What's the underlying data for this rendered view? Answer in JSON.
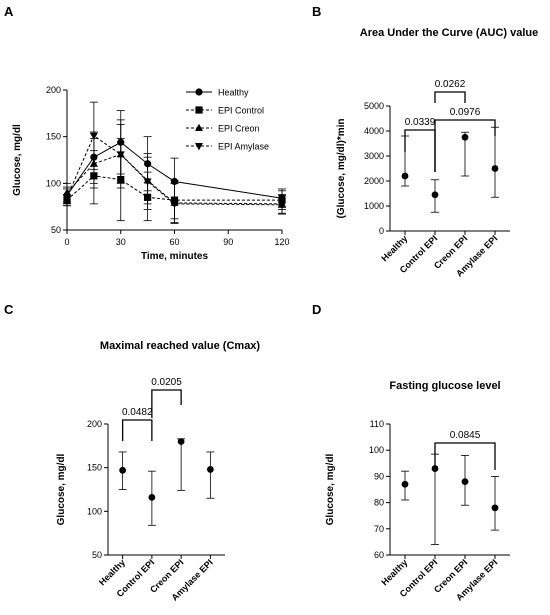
{
  "chart_data": [
    {
      "panel": "A",
      "type": "line",
      "title": "",
      "xlabel": "Time, minutes",
      "ylabel": "Glucose, mg/dl",
      "xlim": [
        0,
        120
      ],
      "ylim": [
        50,
        200
      ],
      "xticks": [
        0,
        30,
        60,
        90,
        120
      ],
      "yticks": [
        50,
        100,
        150,
        200
      ],
      "x": [
        0,
        15,
        30,
        45,
        60,
        120
      ],
      "legend_position": "top-right",
      "series": [
        {
          "name": "Healthy",
          "marker": "circle",
          "dash": "solid",
          "values": [
            87,
            128,
            144,
            121,
            102,
            84
          ],
          "err": [
            [
              78,
              96
            ],
            [
              100,
              155
            ],
            [
              110,
              178
            ],
            [
              92,
              150
            ],
            [
              80,
              127
            ],
            [
              74,
              94
            ]
          ]
        },
        {
          "name": "EPI Control",
          "marker": "square",
          "dash": "dashed",
          "values": [
            82,
            108,
            104,
            85,
            82,
            82
          ],
          "err": [
            [
              76,
              88
            ],
            [
              78,
              135
            ],
            [
              60,
              148
            ],
            [
              60,
              112
            ],
            [
              62,
              103
            ],
            [
              72,
              92
            ]
          ]
        },
        {
          "name": "EPI Creon",
          "marker": "triangle-up",
          "dash": "dashed",
          "values": [
            90,
            121,
            131,
            103,
            79,
            78
          ],
          "err": [
            [
              80,
              100
            ],
            [
              95,
              148
            ],
            [
              100,
              163
            ],
            [
              78,
              128
            ],
            [
              58,
              100
            ],
            [
              68,
              88
            ]
          ]
        },
        {
          "name": "EPI Amylase",
          "marker": "triangle-down",
          "dash": "dashed",
          "values": [
            85,
            151,
            131,
            102,
            78,
            77
          ],
          "err": [
            [
              76,
              94
            ],
            [
              115,
              187
            ],
            [
              95,
              168
            ],
            [
              72,
              132
            ],
            [
              57,
              100
            ],
            [
              67,
              87
            ]
          ]
        }
      ]
    },
    {
      "panel": "B",
      "type": "scatter",
      "title": "Area Under the Curve (AUC) value",
      "xlabel": "",
      "ylabel": "(Glucose, mg/dl)*min",
      "ylim": [
        0,
        5000
      ],
      "yticks": [
        0,
        1000,
        2000,
        3000,
        4000,
        5000
      ],
      "categories": [
        "Healthy",
        "Control EPI",
        "Creon EPI",
        "Amylase EPI"
      ],
      "values": [
        2200,
        1450,
        3750,
        2500
      ],
      "err": [
        [
          1800,
          3800
        ],
        [
          750,
          2050
        ],
        [
          2200,
          3950
        ],
        [
          1350,
          4150
        ]
      ],
      "comparisons": [
        {
          "from": 0,
          "to": 1,
          "label": "0.0339"
        },
        {
          "from": 1,
          "to": 2,
          "label": "0.0262"
        },
        {
          "from": 1,
          "to": 3,
          "label": "0.0976"
        }
      ]
    },
    {
      "panel": "C",
      "type": "scatter",
      "title": "Maximal reached value (Cmax)",
      "xlabel": "",
      "ylabel": "Glucose, mg/dl",
      "ylim": [
        50,
        200
      ],
      "yticks": [
        50,
        100,
        150,
        200
      ],
      "categories": [
        "Healthy",
        "Control EPI",
        "Creon EPI",
        "Amylase EPI"
      ],
      "values": [
        147,
        116,
        180,
        148
      ],
      "err": [
        [
          125,
          168
        ],
        [
          84,
          146
        ],
        [
          124,
          183
        ],
        [
          115,
          168
        ]
      ],
      "comparisons": [
        {
          "from": 0,
          "to": 1,
          "label": "0.0482"
        },
        {
          "from": 1,
          "to": 2,
          "label": "0.0205"
        }
      ]
    },
    {
      "panel": "D",
      "type": "scatter",
      "title": "Fasting glucose level",
      "xlabel": "",
      "ylabel": "Glucose, mg/dl",
      "ylim": [
        60,
        110
      ],
      "yticks": [
        60,
        70,
        80,
        90,
        100,
        110
      ],
      "categories": [
        "Healthy",
        "Control EPI",
        "Creon EPI",
        "Amylase EPI"
      ],
      "values": [
        87,
        93,
        88,
        78
      ],
      "err": [
        [
          81,
          92
        ],
        [
          64,
          98.5
        ],
        [
          79,
          98
        ],
        [
          69.5,
          90
        ]
      ],
      "comparisons": [
        {
          "from": 1,
          "to": 3,
          "label": "0.0845"
        }
      ]
    }
  ]
}
